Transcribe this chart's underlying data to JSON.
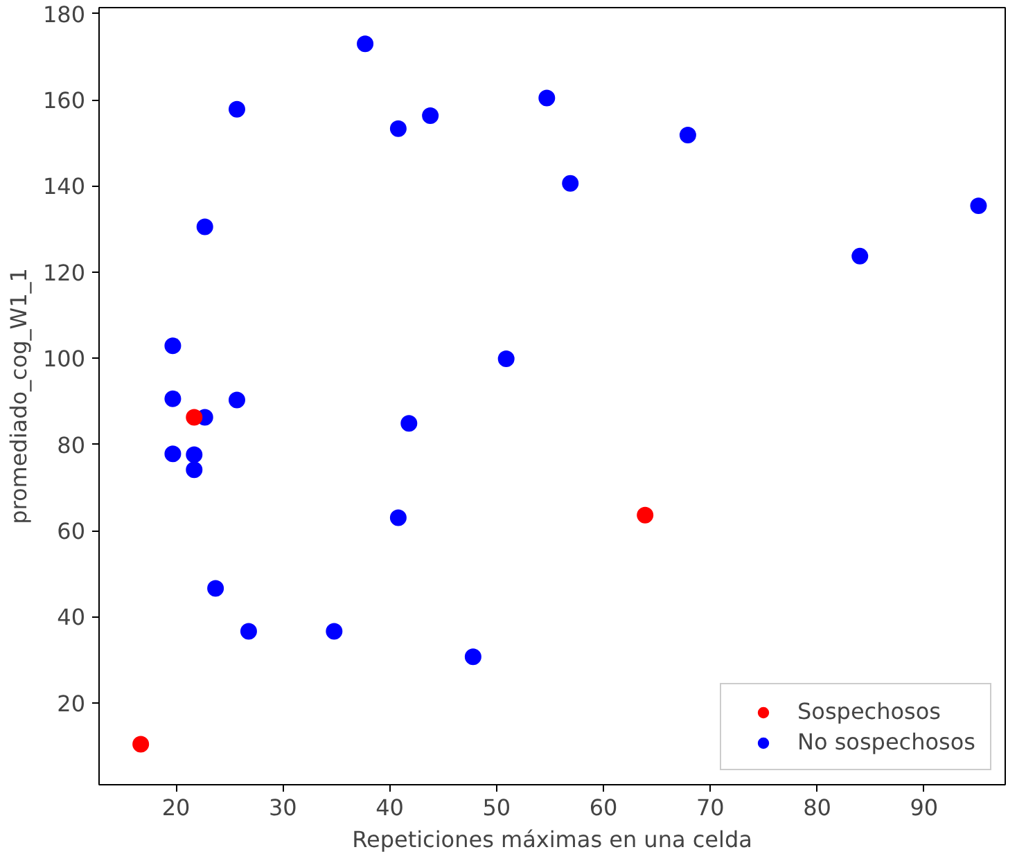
{
  "chart_data": {
    "type": "scatter",
    "xlabel": "Repeticiones máximas en una celda",
    "ylabel": "promediado_cog_W1_1",
    "xlim": [
      12.8,
      97.6
    ],
    "ylim": [
      1,
      181.4
    ],
    "xticks": [
      20,
      30,
      40,
      50,
      60,
      70,
      80,
      90
    ],
    "yticks": [
      20,
      40,
      60,
      80,
      100,
      120,
      140,
      160,
      180
    ],
    "grid": false,
    "legend": "bottom right",
    "marker": "circle",
    "series": [
      {
        "name": "No sospechosos",
        "color": "#0000ff",
        "x": [
          40.8,
          23.7,
          26.8,
          34.8,
          47.8,
          41.8,
          50.9,
          19.7,
          19.7,
          25.7,
          22.7,
          19.7,
          21.7,
          21.7,
          37.7,
          25.7,
          40.8,
          43.8,
          22.7,
          54.7,
          67.9,
          56.9,
          84.0,
          95.1
        ],
        "values": [
          63.0,
          46.6,
          36.6,
          36.6,
          30.7,
          84.9,
          99.9,
          102.9,
          90.6,
          90.3,
          86.3,
          77.8,
          77.6,
          74.1,
          173.0,
          157.8,
          153.3,
          156.3,
          130.5,
          160.4,
          151.8,
          140.6,
          123.7,
          135.4
        ]
      },
      {
        "name": "Sospechosos",
        "color": "#ff0000",
        "x": [
          16.7,
          21.7,
          63.9
        ],
        "values": [
          10.4,
          86.3,
          63.6
        ]
      }
    ]
  }
}
